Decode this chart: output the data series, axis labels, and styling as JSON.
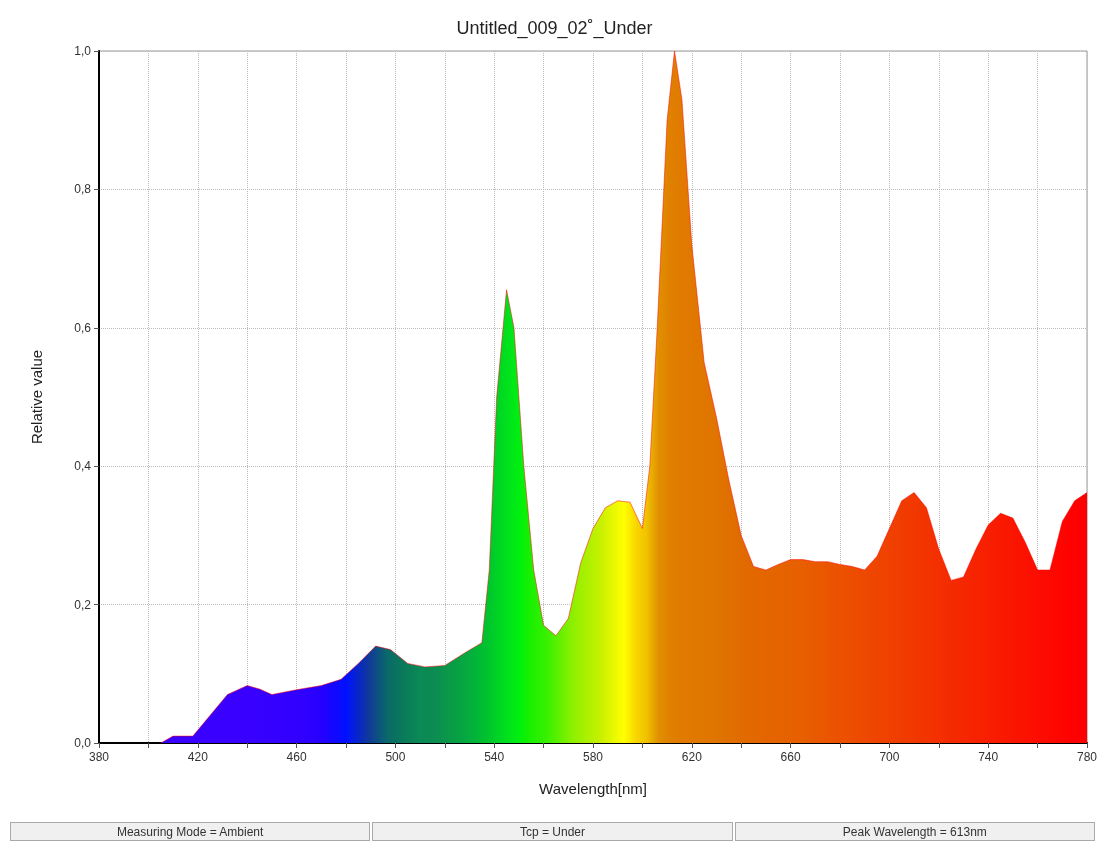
{
  "chart_data": {
    "type": "area",
    "title": "Untitled_009_02˚_Under",
    "xlabel": "Wavelength[nm]",
    "ylabel": "Relative value",
    "annotations": [
      "Measuring Mode = Ambient",
      "Tcp = Under",
      "Peak Wavelength = 613nm"
    ],
    "xlim": [
      380,
      780
    ],
    "xticks": [
      380,
      {
        "value": 400,
        "label": null
      },
      420,
      {
        "value": 440,
        "label": null
      },
      460,
      {
        "value": 480,
        "label": null
      },
      500,
      {
        "value": 520,
        "label": null
      },
      540,
      {
        "value": 560,
        "label": null
      },
      580,
      {
        "value": 600,
        "label": null
      },
      620,
      {
        "value": 640,
        "label": null
      },
      660,
      {
        "value": 680,
        "label": null
      },
      700,
      {
        "value": 720,
        "label": null
      },
      740,
      {
        "value": 760,
        "label": null
      },
      780
    ],
    "ylim": [
      0,
      1
    ],
    "yticks": [
      {
        "value": 0,
        "label": "0,0"
      },
      {
        "value": 0.2,
        "label": "0,2"
      },
      {
        "value": 0.4,
        "label": "0,4"
      },
      {
        "value": 0.6,
        "label": "0,6"
      },
      {
        "value": 0.8,
        "label": "0,8"
      },
      {
        "value": 1,
        "label": "1,0"
      }
    ],
    "grid": true,
    "marker": "none",
    "x": [
      405,
      410,
      418,
      425,
      432,
      440,
      445,
      450,
      460,
      470,
      478,
      485,
      492,
      498,
      505,
      512,
      520,
      528,
      535,
      538,
      541,
      545,
      548,
      552,
      556,
      560,
      565,
      570,
      575,
      580,
      585,
      590,
      595,
      600,
      603,
      606,
      610,
      613,
      616,
      620,
      625,
      630,
      635,
      640,
      645,
      650,
      655,
      660,
      665,
      670,
      675,
      680,
      685,
      690,
      695,
      700,
      705,
      710,
      715,
      720,
      725,
      730,
      735,
      740,
      745,
      750,
      755,
      760,
      765,
      770,
      775,
      780
    ],
    "series": [
      {
        "values": [
          0,
          0.01,
          0.01,
          0.04,
          0.07,
          0.083,
          0.078,
          0.07,
          0.077,
          0.083,
          0.092,
          0.115,
          0.14,
          0.135,
          0.115,
          0.11,
          0.112,
          0.13,
          0.145,
          0.25,
          0.5,
          0.655,
          0.6,
          0.4,
          0.25,
          0.17,
          0.155,
          0.18,
          0.26,
          0.31,
          0.34,
          0.35,
          0.348,
          0.31,
          0.4,
          0.6,
          0.9,
          1.0,
          0.93,
          0.72,
          0.55,
          0.47,
          0.38,
          0.3,
          0.255,
          0.25,
          0.258,
          0.265,
          0.265,
          0.262,
          0.262,
          0.258,
          0.255,
          0.25,
          0.27,
          0.31,
          0.35,
          0.362,
          0.34,
          0.28,
          0.235,
          0.24,
          0.28,
          0.315,
          0.332,
          0.325,
          0.29,
          0.25,
          0.25,
          0.32,
          0.35,
          0.362
        ],
        "colors": [
          "#3a00ff",
          "#3a00ff",
          "#3800ff",
          "#3600ff",
          "#3400ff",
          "#3000ff",
          "#2c00ff",
          "#2400ff",
          "#0010ff",
          "#103a98",
          "#0a6a68",
          "#0a7a5a",
          "#0a8a55",
          "#0c8c52",
          "#0a9a48",
          "#04aa40",
          "#00c030",
          "#00dc20",
          "#00f010",
          "#10f000",
          "#20f000",
          "#30f000",
          "#40f000",
          "#60f000",
          "#80f000",
          "#98f000",
          "#b0f000",
          "#c8f000",
          "#e4f800",
          "#ffff00",
          "#f8d800",
          "#f0c000",
          "#e09000",
          "#e08000",
          "#e07c00",
          "#e07a00",
          "#e07800",
          "#e07800",
          "#e07600",
          "#e07400",
          "#e07000",
          "#e06c00",
          "#e26800",
          "#e46600",
          "#e46400",
          "#e66200",
          "#e86000",
          "#e85c00",
          "#ea5800",
          "#ea5400",
          "#ec5000",
          "#ec4c00",
          "#ee4800",
          "#ee4400",
          "#f04000",
          "#f03c00",
          "#f23800",
          "#f23400",
          "#f43000",
          "#f42c00",
          "#f62800",
          "#f62400",
          "#f82000",
          "#f81c00",
          "#fa1800",
          "#fa1400",
          "#fc1000",
          "#fc0c00",
          "#fd0800",
          "#fe0400",
          "#ff0000",
          "#ff0000"
        ]
      }
    ]
  }
}
